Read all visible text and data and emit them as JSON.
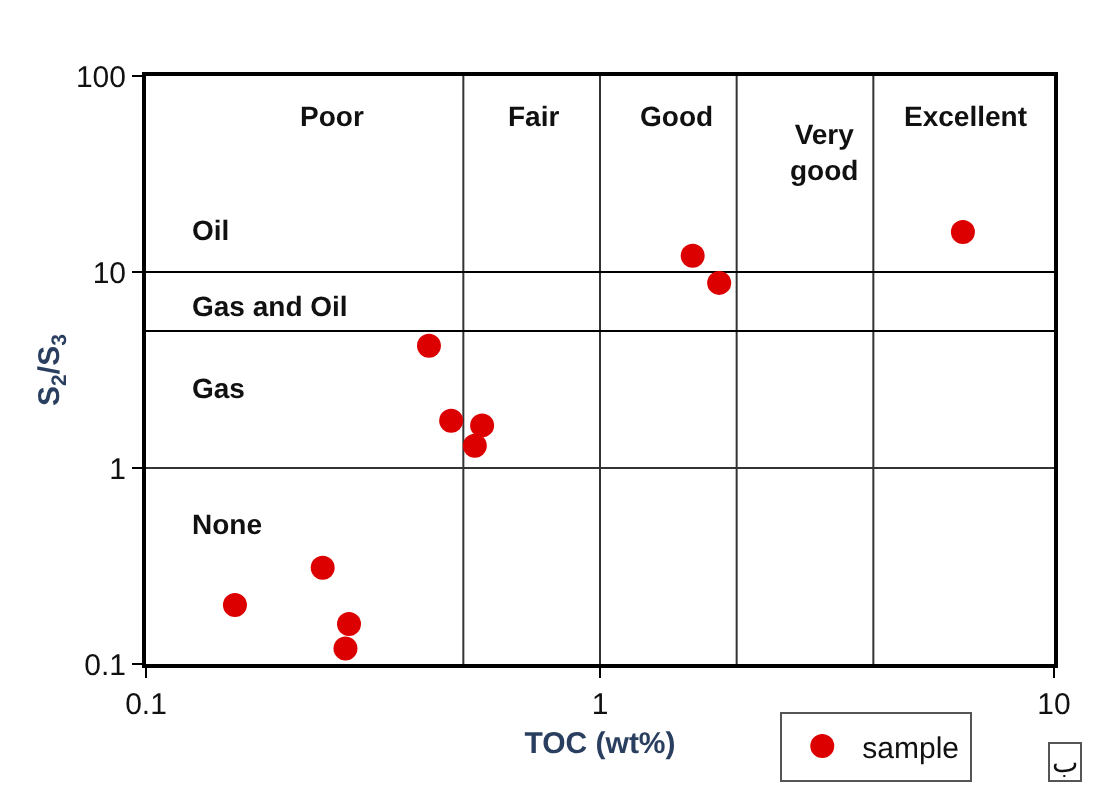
{
  "chart_data": {
    "type": "scatter",
    "xlabel": "TOC (wt%)",
    "ylabel": "S$_{2}$/S$_{3}$",
    "log": "xy",
    "xlim": [
      0.1,
      10
    ],
    "ylim": [
      0.1,
      100
    ],
    "xticks": [
      0.1,
      1,
      10
    ],
    "yticks": [
      0.1,
      1,
      10,
      100
    ],
    "grid": false,
    "legend": "bottom right",
    "marker": "circle",
    "series": [
      {
        "name": "sample",
        "color": "#dd0000",
        "x": [
          6.3,
          1.6,
          1.83,
          0.42,
          0.47,
          0.55,
          0.53,
          0.245,
          0.157,
          0.28,
          0.275
        ],
        "values": [
          16,
          12.1,
          8.8,
          4.2,
          1.74,
          1.65,
          1.3,
          0.31,
          0.2,
          0.16,
          0.12
        ]
      }
    ],
    "ref_lines": [
      {
        "axis": "x",
        "value": 0.5,
        "color": "#333333"
      },
      {
        "axis": "x",
        "value": 1,
        "color": "#333333"
      },
      {
        "axis": "x",
        "value": 2,
        "color": "#333333"
      },
      {
        "axis": "x",
        "value": 4,
        "color": "#333333"
      },
      {
        "axis": "y",
        "value": 10,
        "color": "#000000"
      },
      {
        "axis": "y",
        "value": 5,
        "color": "#000000"
      },
      {
        "axis": "y",
        "value": 1,
        "color": "#333333"
      }
    ],
    "annotations": [
      "Poor",
      "Fair",
      "Good",
      "Very\ngood",
      "Excellent",
      "Oil",
      "Gas and Oil",
      "Gas",
      "None",
      "ب"
    ]
  }
}
